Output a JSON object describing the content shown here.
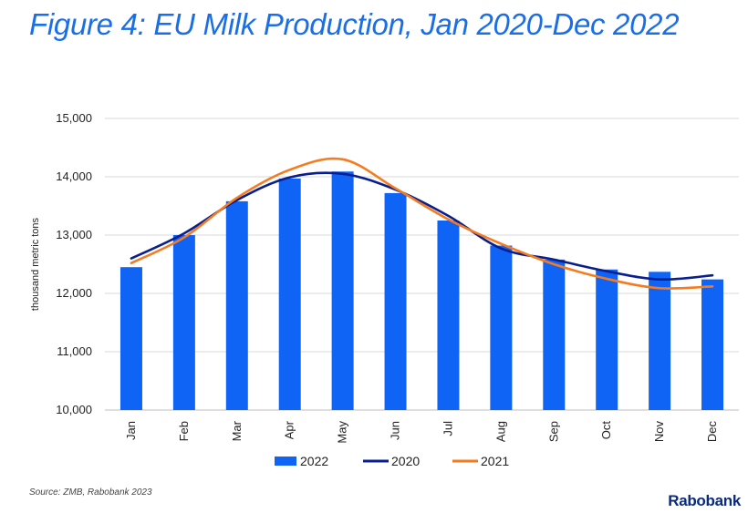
{
  "title": "Figure 4: EU Milk Production, Jan 2020-Dec 2022",
  "source": {
    "label": "Source:",
    "text": "ZMB, Rabobank 2023"
  },
  "brand": "Rabobank",
  "colors": {
    "title": "#1a6fe8",
    "bars": "#1064f5",
    "line2020": "#0a1f8f",
    "line2021": "#f47b20",
    "grid": "#d9d9d9"
  },
  "chart_data": {
    "type": "bar",
    "categories": [
      "Jan",
      "Feb",
      "Mar",
      "Apr",
      "May",
      "Jun",
      "Jul",
      "Aug",
      "Sep",
      "Oct",
      "Nov",
      "Dec"
    ],
    "ylabel": "thousand metric tons",
    "ylim": [
      10000,
      15000
    ],
    "yticks": [
      10000,
      11000,
      12000,
      13000,
      14000,
      15000
    ],
    "ytick_labels": [
      "10,000",
      "11,000",
      "12,000",
      "13,000",
      "14,000",
      "15,000"
    ],
    "grid": true,
    "legend_position": "bottom",
    "series": [
      {
        "name": "2022",
        "type": "bar",
        "values": [
          12450,
          13000,
          13580,
          13970,
          14090,
          13720,
          13250,
          12820,
          12580,
          12410,
          12370,
          12240
        ]
      },
      {
        "name": "2020",
        "type": "line",
        "values": [
          12600,
          13030,
          13600,
          13990,
          14050,
          13780,
          13330,
          12770,
          12580,
          12380,
          12240,
          12310
        ]
      },
      {
        "name": "2021",
        "type": "line",
        "values": [
          12520,
          12960,
          13640,
          14120,
          14300,
          13800,
          13270,
          12850,
          12500,
          12250,
          12090,
          12120
        ]
      }
    ]
  }
}
